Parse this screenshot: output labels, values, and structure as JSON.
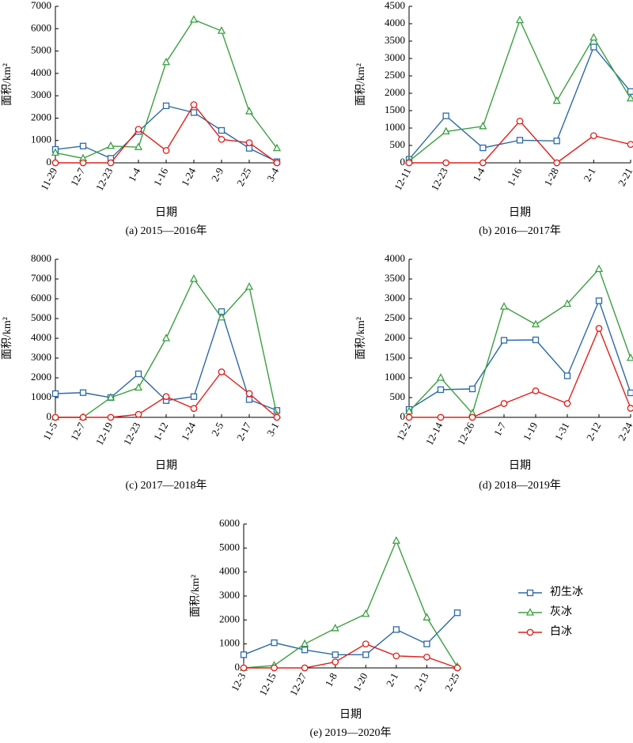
{
  "chart_data": [
    {
      "type": "line",
      "title": "(a) 2015—2016年",
      "xlabel": "日期",
      "ylabel": "面积/km²",
      "categories": [
        "11-29",
        "12-7",
        "12-23",
        "1-4",
        "1-16",
        "1-24",
        "2-9",
        "2-25",
        "3-4"
      ],
      "ylim": [
        0,
        7000
      ],
      "yticks": [
        0,
        1000,
        2000,
        3000,
        4000,
        5000,
        6000,
        7000
      ],
      "series": [
        {
          "name": "初生冰",
          "color": "#2b6aa8",
          "marker": "square",
          "values": [
            600,
            750,
            200,
            1400,
            2550,
            2250,
            1450,
            650,
            50
          ]
        },
        {
          "name": "灰冰",
          "color": "#3aa040",
          "marker": "triangle",
          "values": [
            450,
            200,
            750,
            700,
            4500,
            6400,
            5900,
            2300,
            650
          ]
        },
        {
          "name": "白冰",
          "color": "#e0201b",
          "marker": "circle",
          "values": [
            0,
            0,
            0,
            1500,
            550,
            2600,
            1050,
            900,
            0
          ]
        }
      ]
    },
    {
      "type": "line",
      "title": "(b) 2016—2017年",
      "xlabel": "日期",
      "ylabel": "面积/km²",
      "categories": [
        "12-11",
        "12-23",
        "1-4",
        "1-16",
        "1-28",
        "2-1",
        "2-21"
      ],
      "ylim": [
        0,
        4500
      ],
      "yticks": [
        0,
        500,
        1000,
        1500,
        2000,
        2500,
        3000,
        3500,
        4000,
        4500
      ],
      "series": [
        {
          "name": "初生冰",
          "color": "#2b6aa8",
          "marker": "square",
          "values": [
            100,
            1350,
            430,
            650,
            630,
            3330,
            2050
          ]
        },
        {
          "name": "灰冰",
          "color": "#3aa040",
          "marker": "triangle",
          "values": [
            50,
            900,
            1050,
            4100,
            1780,
            3600,
            1850
          ]
        },
        {
          "name": "白冰",
          "color": "#e0201b",
          "marker": "circle",
          "values": [
            0,
            0,
            0,
            1200,
            0,
            780,
            530
          ]
        }
      ]
    },
    {
      "type": "line",
      "title": "(c) 2017—2018年",
      "xlabel": "日期",
      "ylabel": "面积/km²",
      "categories": [
        "11-5",
        "12-7",
        "12-19",
        "12-23",
        "1-12",
        "1-24",
        "2-5",
        "2-17",
        "3-1"
      ],
      "ylim": [
        0,
        8000
      ],
      "yticks": [
        0,
        1000,
        2000,
        3000,
        4000,
        5000,
        6000,
        7000,
        8000
      ],
      "series": [
        {
          "name": "初生冰",
          "color": "#2b6aa8",
          "marker": "square",
          "values": [
            1200,
            1250,
            1000,
            2200,
            850,
            1050,
            5350,
            900,
            350
          ]
        },
        {
          "name": "灰冰",
          "color": "#3aa040",
          "marker": "triangle",
          "values": [
            0,
            0,
            1000,
            1500,
            4000,
            7000,
            5050,
            6600,
            100
          ]
        },
        {
          "name": "白冰",
          "color": "#e0201b",
          "marker": "circle",
          "values": [
            0,
            0,
            0,
            150,
            1050,
            450,
            2300,
            1200,
            0
          ]
        }
      ]
    },
    {
      "type": "line",
      "title": "(d) 2018—2019年",
      "xlabel": "日期",
      "ylabel": "面积/km²",
      "categories": [
        "12-2",
        "12-14",
        "12-26",
        "1-7",
        "1-19",
        "1-31",
        "2-12",
        "2-24"
      ],
      "ylim": [
        0,
        4000
      ],
      "yticks": [
        0,
        500,
        1000,
        1500,
        2000,
        2500,
        3000,
        3500,
        4000
      ],
      "series": [
        {
          "name": "初生冰",
          "color": "#2b6aa8",
          "marker": "square",
          "values": [
            200,
            700,
            720,
            1950,
            1960,
            1050,
            2950,
            620
          ]
        },
        {
          "name": "灰冰",
          "color": "#3aa040",
          "marker": "triangle",
          "values": [
            150,
            1000,
            100,
            2800,
            2350,
            2870,
            3750,
            1500
          ]
        },
        {
          "name": "白冰",
          "color": "#e0201b",
          "marker": "circle",
          "values": [
            0,
            0,
            0,
            350,
            670,
            350,
            2250,
            230
          ]
        }
      ]
    },
    {
      "type": "line",
      "title": "(e) 2019—2020年",
      "xlabel": "日期",
      "ylabel": "面积/km²",
      "categories": [
        "12-3",
        "12-15",
        "12-27",
        "1-8",
        "1-20",
        "2-1",
        "2-13",
        "2-25"
      ],
      "ylim": [
        0,
        6000
      ],
      "yticks": [
        0,
        1000,
        2000,
        3000,
        4000,
        5000,
        6000
      ],
      "series": [
        {
          "name": "初生冰",
          "color": "#2b6aa8",
          "marker": "square",
          "values": [
            550,
            1050,
            750,
            550,
            550,
            1600,
            1000,
            2300
          ]
        },
        {
          "name": "灰冰",
          "color": "#3aa040",
          "marker": "triangle",
          "values": [
            0,
            100,
            1000,
            1650,
            2250,
            5300,
            2100,
            50
          ]
        },
        {
          "name": "白冰",
          "color": "#e0201b",
          "marker": "circle",
          "values": [
            0,
            0,
            0,
            250,
            1000,
            500,
            450,
            0
          ]
        }
      ]
    }
  ]
}
